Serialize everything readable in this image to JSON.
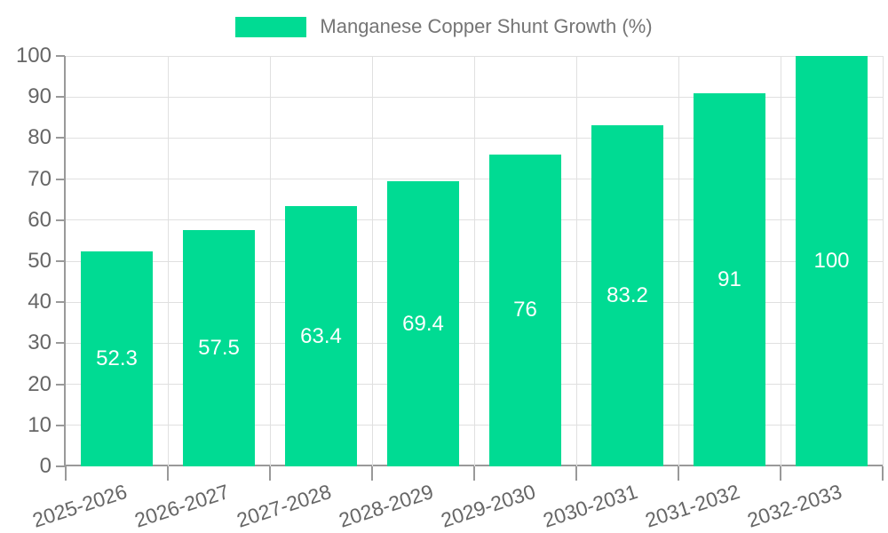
{
  "legend": {
    "label": "Manganese Copper Shunt Growth (%)"
  },
  "colors": {
    "background": "#ffffff",
    "bar": "#00db93",
    "grid": "#e0e0e0",
    "axis": "#999999",
    "tick_text": "#666666",
    "legend_text": "#757575",
    "value_label": "#ffffff"
  },
  "chart_data": {
    "type": "bar",
    "title": "Manganese Copper Shunt Growth (%)",
    "categories": [
      "2025-2026",
      "2026-2027",
      "2027-2028",
      "2028-2029",
      "2029-2030",
      "2030-2031",
      "2031-2032",
      "2032-2033"
    ],
    "values": [
      52.3,
      57.5,
      63.4,
      69.4,
      76,
      83.2,
      91,
      100
    ],
    "value_labels": [
      "52.3",
      "57.5",
      "63.4",
      "69.4",
      "76",
      "83.2",
      "91",
      "100"
    ],
    "xlabel": "",
    "ylabel": "",
    "ylim": [
      0,
      100
    ],
    "ytick_interval": 10,
    "ytick_labels": [
      "0",
      "10",
      "20",
      "30",
      "40",
      "50",
      "60",
      "70",
      "80",
      "90",
      "100"
    ],
    "grid": true,
    "legend_position": "top",
    "x_label_rotation_deg": -18,
    "bar_width_fraction": 0.71
  }
}
